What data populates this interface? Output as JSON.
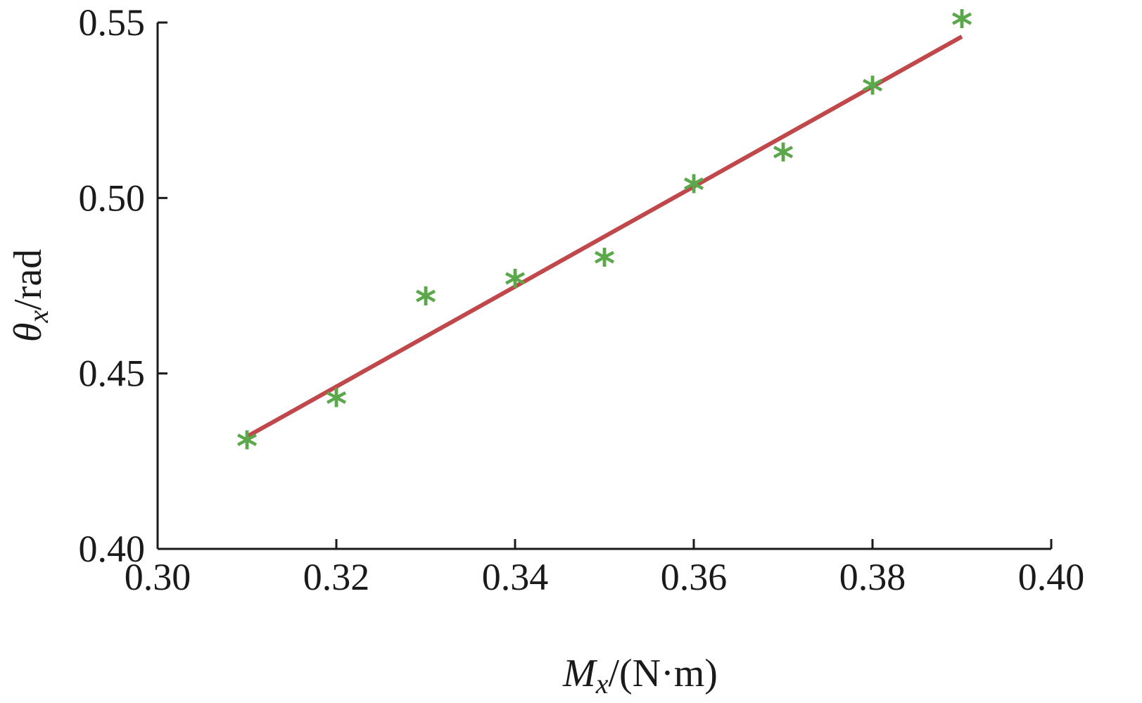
{
  "chart_data": {
    "type": "scatter",
    "title": "",
    "xlabel": {
      "symbol": "M",
      "sub": "x",
      "unit": "/(N·m)"
    },
    "ylabel": {
      "symbol": "θ",
      "sub": "x",
      "unit": "/rad"
    },
    "xlim": [
      0.3,
      0.4
    ],
    "ylim": [
      0.4,
      0.55
    ],
    "xticks": [
      "0.30",
      "0.32",
      "0.34",
      "0.36",
      "0.38",
      "0.40"
    ],
    "yticks": [
      "0.40",
      "0.45",
      "0.50",
      "0.55"
    ],
    "grid": false,
    "series": [
      {
        "kind": "markers",
        "marker": "*",
        "color": "#5aa84a",
        "x": [
          0.31,
          0.32,
          0.33,
          0.34,
          0.35,
          0.36,
          0.37,
          0.38,
          0.39
        ],
        "y": [
          0.43,
          0.442,
          0.471,
          0.476,
          0.482,
          0.503,
          0.512,
          0.531,
          0.55
        ]
      },
      {
        "kind": "fit-line",
        "color": "#c0474a",
        "x": [
          0.31,
          0.39
        ],
        "y": [
          0.432,
          0.546
        ]
      }
    ]
  }
}
